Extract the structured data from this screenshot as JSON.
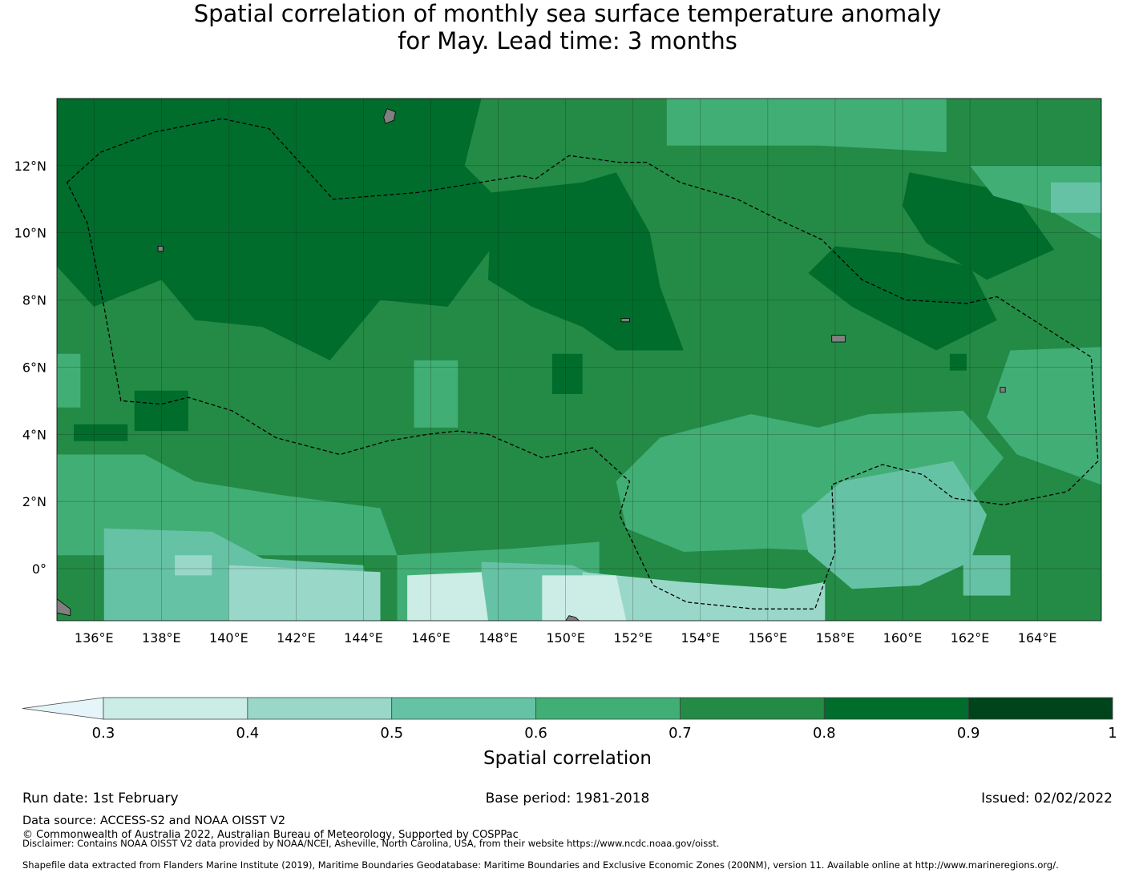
{
  "title": {
    "line1": "Spatial correlation of monthly sea surface temperature anomaly",
    "line2": "for May. Lead time: 3 months"
  },
  "map": {
    "lon_ticks": [
      "136°E",
      "138°E",
      "140°E",
      "142°E",
      "144°E",
      "146°E",
      "148°E",
      "150°E",
      "152°E",
      "154°E",
      "156°E",
      "158°E",
      "160°E",
      "162°E",
      "164°E"
    ],
    "lat_ticks": [
      "12°N",
      "10°N",
      "8°N",
      "6°N",
      "4°N",
      "2°N",
      "0°"
    ],
    "lon_range": [
      134.9,
      165.9
    ],
    "lat_range": [
      -1.55,
      14.0
    ],
    "land_color": "#808080",
    "gridline_color": "#1a1a1a",
    "boundary_style": "dashed"
  },
  "colorbar": {
    "boundaries": [
      0.3,
      0.4,
      0.5,
      0.6,
      0.7,
      0.8,
      0.9,
      1.0
    ],
    "tick_labels": [
      "0.3",
      "0.4",
      "0.5",
      "0.6",
      "0.7",
      "0.8",
      "0.9",
      "1"
    ],
    "colors": [
      "#ccece6",
      "#99d8c9",
      "#66c2a4",
      "#41ae76",
      "#238b45",
      "#006d2c",
      "#00441b"
    ],
    "under_color": "#e5f5f9",
    "label": "Spatial correlation"
  },
  "footer": {
    "run_date": "Run date: 1st February",
    "base_period": "Base period: 1981-2018",
    "issued": "Issued: 02/02/2022",
    "data_source": "Data source: ACCESS-S2 and NOAA OISST V2",
    "copyright": "© Commonwealth of Australia 2022, Australian Bureau of Meteorology, Supported by COSPPac",
    "disclaimer": "Disclaimer: Contains NOAA OISST V2 data provided by NOAA/NCEI, Asheville, North Carolina, USA, from their website https://www.ncdc.noaa.gov/oisst.",
    "shapefile": "Shapefile data extracted from Flanders Marine Institute (2019), Maritime Boundaries Geodatabase: Maritime Boundaries and Exclusive Economic Zones (200NM), version 11. Available online at http://www.marineregions.org/."
  }
}
